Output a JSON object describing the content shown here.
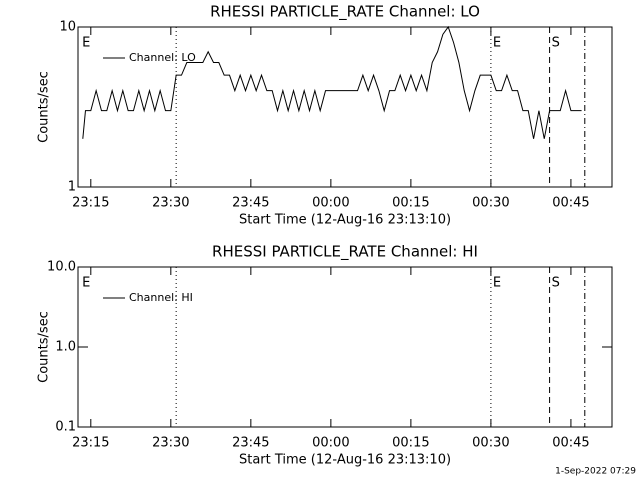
{
  "chart_data": [
    {
      "type": "line",
      "title": "RHESSI PARTICLE_RATE Channel: LO",
      "xlabel": "Start Time (12-Aug-16 23:13:10)",
      "ylabel": "Counts/sec",
      "log_y": true,
      "legend": "upper left",
      "xlim": [
        12.6,
        112.7
      ],
      "ylim": [
        1,
        10
      ],
      "xticks": [
        {
          "value": 15,
          "label": "23:15"
        },
        {
          "value": 30,
          "label": "23:30"
        },
        {
          "value": 45,
          "label": "23:45"
        },
        {
          "value": 60,
          "label": "00:00"
        },
        {
          "value": 75,
          "label": "00:15"
        },
        {
          "value": 90,
          "label": "00:30"
        },
        {
          "value": 105,
          "label": "00:45"
        }
      ],
      "yticks": [
        1,
        10
      ],
      "x": [
        13.5,
        14,
        15,
        16,
        17,
        18,
        19,
        20,
        21,
        22,
        23,
        24,
        25,
        26,
        27,
        28,
        29,
        30,
        31,
        32,
        33,
        34,
        35,
        36,
        37,
        38,
        39,
        40,
        41,
        42,
        43,
        44,
        45,
        46,
        47,
        48,
        49,
        50,
        51,
        52,
        53,
        54,
        55,
        56,
        57,
        58,
        59,
        60,
        61,
        62,
        63,
        64,
        65,
        66,
        67,
        68,
        69,
        70,
        71,
        72,
        73,
        74,
        75,
        76,
        77,
        78,
        79,
        80,
        81,
        82,
        83,
        84,
        85,
        86,
        87,
        88,
        89,
        90,
        91,
        92,
        93,
        94,
        95,
        96,
        97,
        98,
        99,
        100,
        101,
        102,
        103,
        104,
        105,
        106,
        107
      ],
      "series": [
        {
          "name": "Channel: LO",
          "color": "#000000",
          "values": [
            2,
            3,
            3,
            4,
            3,
            3,
            4,
            3,
            4,
            3,
            3,
            4,
            3,
            4,
            3,
            4,
            3,
            3,
            5,
            5,
            6,
            6,
            6,
            6,
            7,
            6,
            6,
            5,
            5,
            4,
            5,
            4,
            5,
            4,
            5,
            4,
            4,
            3,
            4,
            3,
            4,
            3,
            4,
            3,
            4,
            3,
            4,
            4,
            4,
            4,
            4,
            4,
            4,
            5,
            4,
            5,
            4,
            3,
            4,
            4,
            5,
            4,
            5,
            4,
            5,
            4,
            6,
            7,
            9,
            10,
            8,
            6,
            4,
            3,
            4,
            5,
            5,
            5,
            4,
            4,
            5,
            4,
            4,
            3,
            3,
            2,
            3,
            2,
            3,
            3,
            3,
            4,
            3,
            3,
            3
          ]
        }
      ],
      "markers": [
        {
          "x": 13,
          "label": "E"
        },
        {
          "x": 31,
          "style": "dotted"
        },
        {
          "x": 90,
          "style": "dotted",
          "label": "E"
        },
        {
          "x": 101,
          "style": "dashed",
          "label": "S"
        },
        {
          "x": 107.6,
          "style": "dashdot"
        }
      ]
    },
    {
      "type": "line",
      "title": "RHESSI PARTICLE_RATE Channel: HI",
      "xlabel": "Start Time (12-Aug-16 23:13:10)",
      "ylabel": "Counts/sec",
      "log_y": true,
      "legend": "upper left",
      "xlim": [
        12.6,
        112.7
      ],
      "ylim": [
        0.1,
        10
      ],
      "xticks": [
        {
          "value": 15,
          "label": "23:15"
        },
        {
          "value": 30,
          "label": "23:30"
        },
        {
          "value": 45,
          "label": "23:45"
        },
        {
          "value": 60,
          "label": "00:00"
        },
        {
          "value": 75,
          "label": "00:15"
        },
        {
          "value": 90,
          "label": "00:30"
        },
        {
          "value": 105,
          "label": "00:45"
        }
      ],
      "yticks": [
        {
          "value": 10,
          "label": "10.0"
        },
        {
          "value": 1,
          "label": "1.0"
        },
        0.1
      ],
      "x": [],
      "series": [
        {
          "name": "Channel: HI",
          "color": "#000000",
          "values": []
        }
      ],
      "markers": [
        {
          "x": 13,
          "label": "E"
        },
        {
          "x": 31,
          "style": "dotted"
        },
        {
          "x": 90,
          "style": "dotted",
          "label": "E"
        },
        {
          "x": 101,
          "style": "dashed",
          "label": "S"
        },
        {
          "x": 107.6,
          "style": "dashdot"
        }
      ]
    }
  ],
  "footer": "1-Sep-2022 07:29"
}
